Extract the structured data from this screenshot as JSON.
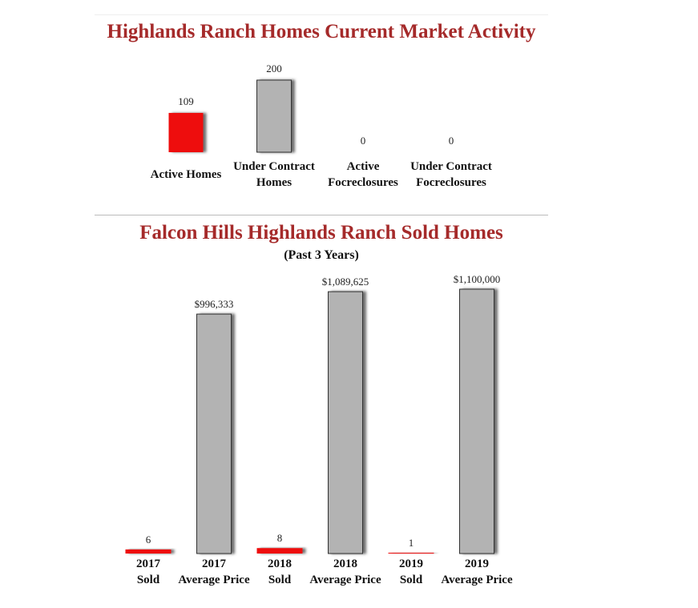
{
  "colors": {
    "title": "#a52a2a",
    "gray_bar": "#b3b3b3",
    "red_bar": "#ee1111",
    "shadow": "#555555"
  },
  "chart_data": [
    {
      "type": "bar",
      "title": "Highlands Ranch Homes Current Market Activity",
      "categories": [
        [
          "Active Homes"
        ],
        [
          "Under Contract",
          "Homes"
        ],
        [
          "Active",
          "Focreclosures"
        ],
        [
          "Under Contract",
          "Focreclosures"
        ]
      ],
      "values": [
        109,
        200,
        0,
        0
      ],
      "value_labels": [
        "109",
        "200",
        "0",
        "0"
      ],
      "bar_colors": [
        "red",
        "gray",
        "gray",
        "gray"
      ]
    },
    {
      "type": "bar",
      "title": "Falcon Hills Highlands Ranch Sold Homes",
      "subtitle": "(Past 3 Years)",
      "categories": [
        [
          "2017",
          "Sold"
        ],
        [
          "2017",
          "Average Price"
        ],
        [
          "2018",
          "Sold"
        ],
        [
          "2018",
          "Average Price"
        ],
        [
          "2019",
          "Sold"
        ],
        [
          "2019",
          "Average Price"
        ]
      ],
      "values": [
        6,
        996333,
        8,
        1089625,
        1,
        1100000
      ],
      "value_labels": [
        "6",
        "$996,333",
        "8",
        "$1,089,625",
        "1",
        "$1,100,000"
      ],
      "bar_colors": [
        "red",
        "gray",
        "red",
        "gray",
        "red",
        "gray"
      ]
    }
  ]
}
